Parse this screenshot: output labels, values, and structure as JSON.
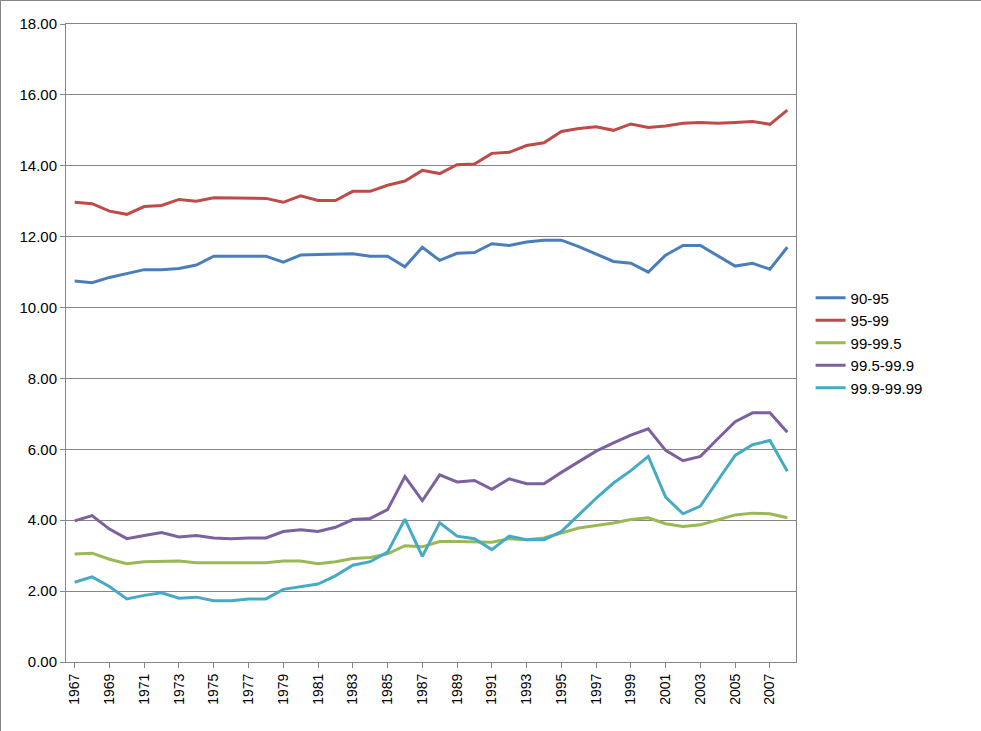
{
  "chart_data": {
    "type": "line",
    "x": [
      1967,
      1968,
      1969,
      1970,
      1971,
      1972,
      1973,
      1974,
      1975,
      1976,
      1977,
      1978,
      1979,
      1980,
      1981,
      1982,
      1983,
      1984,
      1985,
      1986,
      1987,
      1988,
      1989,
      1990,
      1991,
      1992,
      1993,
      1994,
      1995,
      1996,
      1997,
      1998,
      1999,
      2000,
      2001,
      2002,
      2003,
      2004,
      2005,
      2006,
      2007,
      2008
    ],
    "xlim": [
      1966.5,
      2008.5
    ],
    "xticks": [
      1967,
      1969,
      1971,
      1973,
      1975,
      1977,
      1979,
      1981,
      1983,
      1985,
      1987,
      1989,
      1991,
      1993,
      1995,
      1997,
      1999,
      2001,
      2003,
      2005,
      2007
    ],
    "ylim": [
      0,
      18
    ],
    "yticks": [
      {
        "value": 0,
        "label": "0.00"
      },
      {
        "value": 2,
        "label": "2.00"
      },
      {
        "value": 4,
        "label": "4.00"
      },
      {
        "value": 6,
        "label": "6.00"
      },
      {
        "value": 8,
        "label": "8.00"
      },
      {
        "value": 10,
        "label": "10.00"
      },
      {
        "value": 12,
        "label": "12.00"
      },
      {
        "value": 14,
        "label": "14.00"
      },
      {
        "value": 16,
        "label": "16.00"
      },
      {
        "value": 18,
        "label": "18.00"
      }
    ],
    "grid": true,
    "legend": "right",
    "series": [
      {
        "name": "90-95",
        "color": "#4a7ebb",
        "values": [
          10.75,
          10.7,
          10.85,
          10.95,
          11.07,
          11.07,
          11.1,
          11.2,
          11.45,
          11.45,
          11.45,
          11.45,
          11.28,
          11.48,
          11.5,
          11.5,
          11.52,
          11.45,
          11.45,
          11.15,
          11.7,
          11.33,
          11.53,
          11.55,
          11.8,
          11.75,
          11.85,
          11.9,
          11.9,
          11.72,
          11.5,
          11.3,
          11.25,
          11.0,
          11.48,
          11.75,
          11.75,
          11.45,
          11.17,
          11.25,
          11.08,
          11.7
        ]
      },
      {
        "name": "95-99",
        "color": "#be4b48",
        "values": [
          12.97,
          12.93,
          12.72,
          12.63,
          12.85,
          12.88,
          13.05,
          13.0,
          13.1,
          13.1,
          13.08,
          13.08,
          12.97,
          13.15,
          13.02,
          13.02,
          13.28,
          13.28,
          13.45,
          13.57,
          13.87,
          13.78,
          14.03,
          14.05,
          14.35,
          14.38,
          14.57,
          14.65,
          14.97,
          15.05,
          15.1,
          15.0,
          15.18,
          15.08,
          15.12,
          15.2,
          15.22,
          15.2,
          15.22,
          15.25,
          15.17,
          15.57
        ]
      },
      {
        "name": "99-99.5",
        "color": "#98b954",
        "values": [
          3.05,
          3.07,
          2.9,
          2.77,
          2.83,
          2.85,
          2.85,
          2.8,
          2.8,
          2.8,
          2.8,
          2.8,
          2.85,
          2.85,
          2.77,
          2.83,
          2.92,
          2.95,
          3.05,
          3.28,
          3.25,
          3.4,
          3.4,
          3.4,
          3.38,
          3.48,
          3.45,
          3.5,
          3.65,
          3.78,
          3.85,
          3.92,
          4.02,
          4.07,
          3.9,
          3.82,
          3.87,
          4.0,
          4.15,
          4.2,
          4.18,
          4.07
        ]
      },
      {
        "name": "99.5-99.9",
        "color": "#7d60a0",
        "values": [
          3.98,
          4.13,
          3.75,
          3.48,
          3.57,
          3.65,
          3.53,
          3.57,
          3.5,
          3.48,
          3.5,
          3.5,
          3.68,
          3.73,
          3.68,
          3.8,
          4.02,
          4.05,
          4.3,
          5.23,
          4.55,
          5.28,
          5.08,
          5.12,
          4.87,
          5.17,
          5.03,
          5.03,
          5.35,
          5.65,
          5.95,
          6.18,
          6.4,
          6.58,
          5.97,
          5.68,
          5.8,
          6.3,
          6.78,
          7.03,
          7.03,
          6.48
        ]
      },
      {
        "name": "99.9-99.99",
        "color": "#46aac5",
        "values": [
          2.25,
          2.4,
          2.13,
          1.78,
          1.88,
          1.95,
          1.8,
          1.83,
          1.73,
          1.73,
          1.78,
          1.78,
          2.05,
          2.13,
          2.2,
          2.43,
          2.73,
          2.83,
          3.1,
          4.03,
          2.98,
          3.93,
          3.55,
          3.48,
          3.17,
          3.55,
          3.45,
          3.45,
          3.68,
          4.15,
          4.62,
          5.05,
          5.4,
          5.8,
          4.65,
          4.18,
          4.4,
          5.12,
          5.83,
          6.13,
          6.25,
          5.38
        ]
      }
    ]
  }
}
